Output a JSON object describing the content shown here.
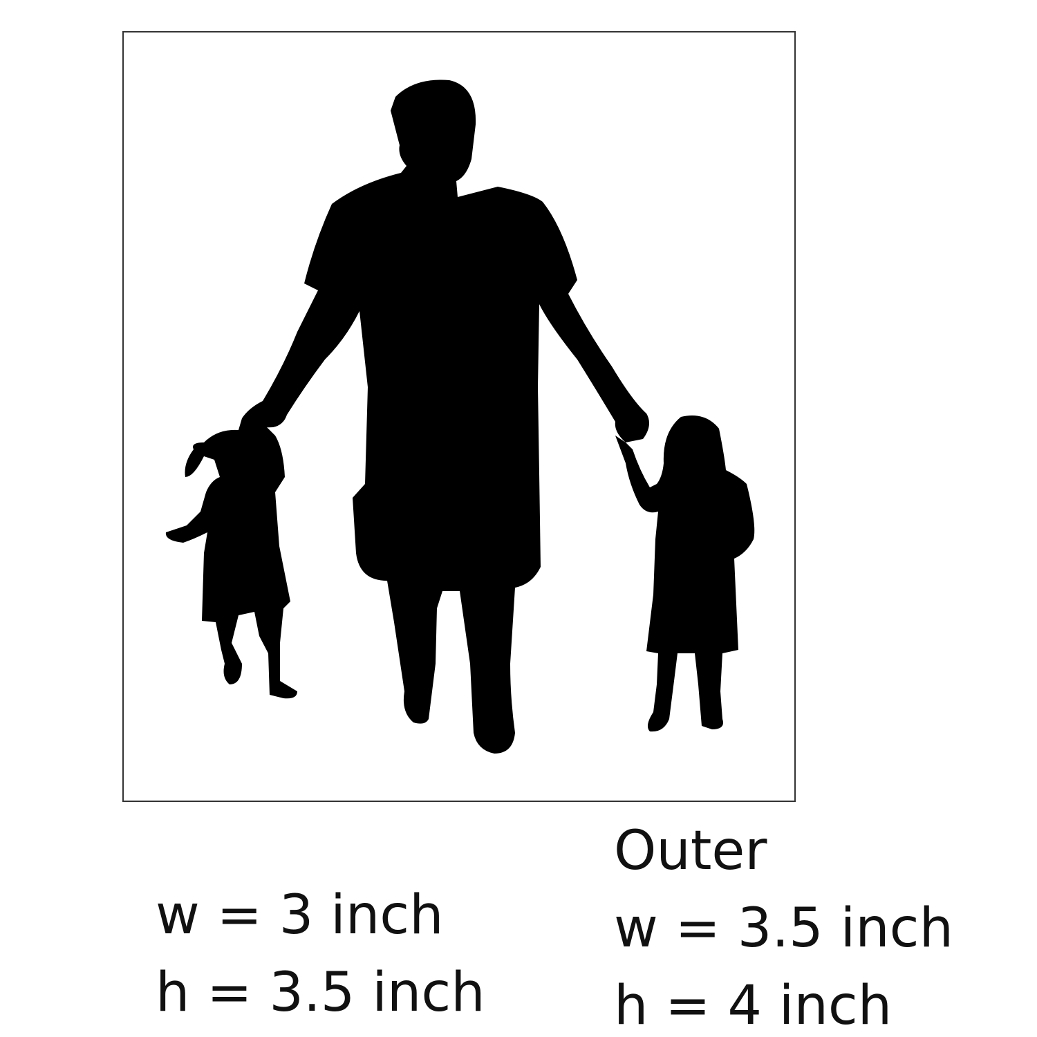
{
  "image": {
    "subject": "silhouette-father-two-daughters",
    "silhouette_color": "#000000",
    "frame_color": "#333333"
  },
  "inner": {
    "width_label": "w = 3 inch",
    "height_label": "h = 3.5 inch"
  },
  "outer": {
    "title": "Outer",
    "width_label": "w = 3.5 inch",
    "height_label": "h = 4 inch"
  }
}
